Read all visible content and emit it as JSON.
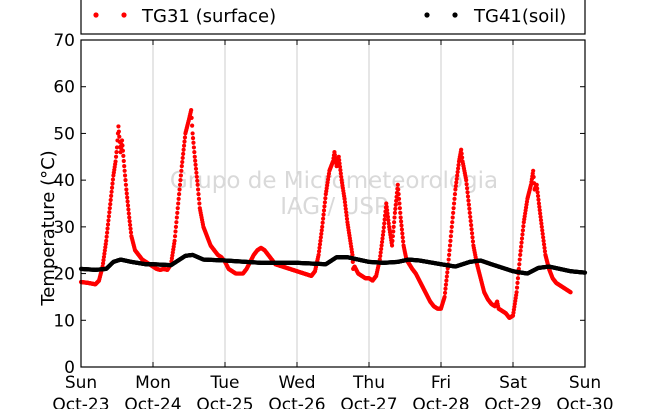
{
  "chart_data": {
    "type": "scatter",
    "title": "",
    "xlabel": "",
    "ylabel": "Temperature (°C)",
    "ylim": [
      0,
      70
    ],
    "yticks": [
      0,
      10,
      20,
      30,
      40,
      50,
      60,
      70
    ],
    "xlim": [
      0,
      7
    ],
    "x_unit": "days since Sun Oct-23 00:00",
    "xticks": [
      {
        "day": "Sun",
        "date": "Oct-23"
      },
      {
        "day": "Mon",
        "date": "Oct-24"
      },
      {
        "day": "Tue",
        "date": "Oct-25"
      },
      {
        "day": "Wed",
        "date": "Oct-26"
      },
      {
        "day": "Thu",
        "date": "Oct-27"
      },
      {
        "day": "Fri",
        "date": "Oct-28"
      },
      {
        "day": "Sat",
        "date": "Oct-29"
      },
      {
        "day": "Sun",
        "date": "Oct-30"
      }
    ],
    "grid": "vertical",
    "legend_placement": "top (above plot)",
    "watermark": [
      "Grupo de Micrometeorologia",
      "IAG / USP"
    ],
    "series": [
      {
        "name": "TG31 (surface)",
        "color": "#ff0000",
        "points": [
          [
            0.0,
            18.2
          ],
          [
            0.1,
            18.0
          ],
          [
            0.2,
            17.7
          ],
          [
            0.25,
            18.5
          ],
          [
            0.3,
            21.5
          ],
          [
            0.35,
            27
          ],
          [
            0.4,
            34
          ],
          [
            0.45,
            41
          ],
          [
            0.48,
            44
          ],
          [
            0.5,
            47
          ],
          [
            0.52,
            51.5
          ],
          [
            0.55,
            46
          ],
          [
            0.57,
            48.5
          ],
          [
            0.6,
            43
          ],
          [
            0.63,
            38
          ],
          [
            0.67,
            32
          ],
          [
            0.7,
            28
          ],
          [
            0.75,
            25
          ],
          [
            0.8,
            24
          ],
          [
            0.85,
            23
          ],
          [
            0.9,
            22.5
          ],
          [
            0.95,
            22
          ],
          [
            1.0,
            21.5
          ],
          [
            1.05,
            21
          ],
          [
            1.1,
            20.8
          ],
          [
            1.15,
            21
          ],
          [
            1.2,
            20.8
          ],
          [
            1.25,
            22
          ],
          [
            1.3,
            27
          ],
          [
            1.35,
            35
          ],
          [
            1.4,
            43
          ],
          [
            1.45,
            50
          ],
          [
            1.5,
            53
          ],
          [
            1.53,
            55
          ],
          [
            1.55,
            50
          ],
          [
            1.58,
            45
          ],
          [
            1.62,
            39
          ],
          [
            1.65,
            34
          ],
          [
            1.7,
            30
          ],
          [
            1.75,
            28
          ],
          [
            1.8,
            26
          ],
          [
            1.85,
            25
          ],
          [
            1.9,
            24
          ],
          [
            1.95,
            23.5
          ],
          [
            2.0,
            22.5
          ],
          [
            2.05,
            21
          ],
          [
            2.1,
            20.5
          ],
          [
            2.15,
            20
          ],
          [
            2.2,
            20
          ],
          [
            2.25,
            20
          ],
          [
            2.3,
            21
          ],
          [
            2.35,
            22.5
          ],
          [
            2.4,
            24
          ],
          [
            2.45,
            25
          ],
          [
            2.5,
            25.5
          ],
          [
            2.55,
            25
          ],
          [
            2.6,
            24
          ],
          [
            2.65,
            23
          ],
          [
            2.7,
            22
          ],
          [
            2.8,
            21.5
          ],
          [
            2.9,
            21
          ],
          [
            3.0,
            20.5
          ],
          [
            3.1,
            20
          ],
          [
            3.2,
            19.5
          ],
          [
            3.25,
            20.5
          ],
          [
            3.3,
            24
          ],
          [
            3.35,
            30
          ],
          [
            3.4,
            37
          ],
          [
            3.45,
            42
          ],
          [
            3.5,
            44
          ],
          [
            3.52,
            46
          ],
          [
            3.55,
            43
          ],
          [
            3.58,
            45
          ],
          [
            3.62,
            40
          ],
          [
            3.66,
            36
          ],
          [
            3.7,
            31
          ],
          [
            3.74,
            27
          ],
          [
            3.77,
            24
          ],
          [
            3.78,
            21
          ],
          [
            3.8,
            21.5
          ],
          [
            3.85,
            20
          ],
          [
            3.9,
            19.5
          ],
          [
            3.95,
            19
          ],
          [
            4.0,
            19
          ],
          [
            4.05,
            18.5
          ],
          [
            4.1,
            19.5
          ],
          [
            4.15,
            23
          ],
          [
            4.2,
            29
          ],
          [
            4.24,
            35
          ],
          [
            4.28,
            30
          ],
          [
            4.32,
            26
          ],
          [
            4.36,
            33
          ],
          [
            4.4,
            39
          ],
          [
            4.44,
            32
          ],
          [
            4.48,
            26
          ],
          [
            4.52,
            23
          ],
          [
            4.56,
            22
          ],
          [
            4.6,
            21
          ],
          [
            4.65,
            20
          ],
          [
            4.7,
            18.5
          ],
          [
            4.75,
            17
          ],
          [
            4.8,
            15.5
          ],
          [
            4.85,
            14
          ],
          [
            4.9,
            13
          ],
          [
            4.95,
            12.5
          ],
          [
            5.0,
            12.5
          ],
          [
            5.05,
            15
          ],
          [
            5.1,
            22
          ],
          [
            5.15,
            30
          ],
          [
            5.2,
            38
          ],
          [
            5.25,
            44
          ],
          [
            5.28,
            46.5
          ],
          [
            5.3,
            44
          ],
          [
            5.35,
            40
          ],
          [
            5.4,
            33
          ],
          [
            5.45,
            26
          ],
          [
            5.5,
            22
          ],
          [
            5.55,
            19
          ],
          [
            5.6,
            16
          ],
          [
            5.65,
            14.5
          ],
          [
            5.7,
            13.5
          ],
          [
            5.75,
            13
          ],
          [
            5.78,
            14
          ],
          [
            5.8,
            12.5
          ],
          [
            5.85,
            12
          ],
          [
            5.9,
            11.5
          ],
          [
            5.95,
            10.5
          ],
          [
            6.0,
            11
          ],
          [
            6.05,
            16
          ],
          [
            6.1,
            24
          ],
          [
            6.15,
            31
          ],
          [
            6.2,
            36
          ],
          [
            6.25,
            39
          ],
          [
            6.28,
            42
          ],
          [
            6.3,
            38
          ],
          [
            6.33,
            39
          ],
          [
            6.36,
            35
          ],
          [
            6.4,
            30
          ],
          [
            6.45,
            24
          ],
          [
            6.5,
            21
          ],
          [
            6.55,
            19
          ],
          [
            6.6,
            18
          ],
          [
            6.65,
            17.5
          ],
          [
            6.7,
            17
          ],
          [
            6.75,
            16.5
          ],
          [
            6.8,
            16
          ]
        ]
      },
      {
        "name": "TG41(soil)",
        "color": "#000000",
        "points": [
          [
            0.0,
            21
          ],
          [
            0.2,
            20.8
          ],
          [
            0.35,
            21
          ],
          [
            0.45,
            22.5
          ],
          [
            0.55,
            23
          ],
          [
            0.7,
            22.5
          ],
          [
            0.9,
            22
          ],
          [
            1.0,
            22
          ],
          [
            1.25,
            21.8
          ],
          [
            1.45,
            23.8
          ],
          [
            1.55,
            24
          ],
          [
            1.7,
            23
          ],
          [
            2.0,
            22.8
          ],
          [
            2.5,
            22.3
          ],
          [
            3.0,
            22.3
          ],
          [
            3.4,
            22
          ],
          [
            3.55,
            23.5
          ],
          [
            3.7,
            23.5
          ],
          [
            4.0,
            22.5
          ],
          [
            4.2,
            22.3
          ],
          [
            4.4,
            22.5
          ],
          [
            4.55,
            23
          ],
          [
            4.7,
            22.8
          ],
          [
            5.0,
            22
          ],
          [
            5.2,
            21.5
          ],
          [
            5.4,
            22.5
          ],
          [
            5.55,
            22.8
          ],
          [
            5.7,
            22
          ],
          [
            6.0,
            20.5
          ],
          [
            6.2,
            20
          ],
          [
            6.35,
            21.2
          ],
          [
            6.5,
            21.5
          ],
          [
            6.8,
            20.5
          ],
          [
            7.0,
            20.2
          ]
        ]
      }
    ]
  }
}
